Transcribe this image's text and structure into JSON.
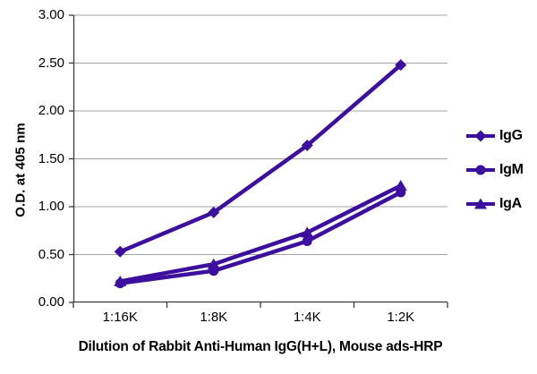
{
  "chart_data": {
    "type": "line",
    "title": "",
    "xlabel": "Dilution of Rabbit Anti-Human IgG(H+L), Mouse ads-HRP",
    "ylabel": "O.D. at 405 nm",
    "categories": [
      "1:16K",
      "1:8K",
      "1:4K",
      "1:2K"
    ],
    "series": [
      {
        "name": "IgG",
        "marker": "diamond",
        "values": [
          0.53,
          0.94,
          1.64,
          2.48
        ]
      },
      {
        "name": "IgM",
        "marker": "circle",
        "values": [
          0.2,
          0.33,
          0.64,
          1.15
        ]
      },
      {
        "name": "IgA",
        "marker": "triangle",
        "values": [
          0.22,
          0.4,
          0.73,
          1.22
        ]
      }
    ],
    "ylim": [
      0,
      3
    ],
    "y_tick_step": 0.5,
    "y_ticks": [
      "0.00",
      "0.50",
      "1.00",
      "1.50",
      "2.00",
      "2.50",
      "3.00"
    ],
    "grid": true,
    "legend_position": "right",
    "colors": {
      "line": "#3D0F9E",
      "grid": "#A3A3A3",
      "axis": "#3A3A3A",
      "text": "#000000"
    }
  }
}
